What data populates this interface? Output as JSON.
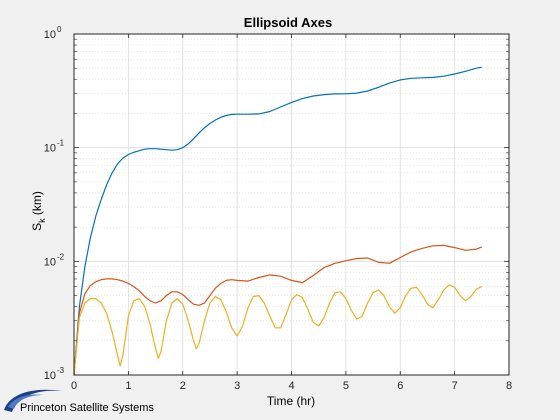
{
  "chart_data": {
    "type": "line",
    "title": "Ellipsoid Axes",
    "xlabel": "Time (hr)",
    "ylabel_main": "S",
    "ylabel_sub": "k",
    "ylabel_unit": " (km)",
    "xlim": [
      0,
      8
    ],
    "ylim": [
      0.001,
      1
    ],
    "yscale": "log",
    "grid": true,
    "minor_grid": true,
    "x_ticks": [
      "0",
      "1",
      "2",
      "3",
      "4",
      "5",
      "6",
      "7",
      "8"
    ],
    "y_ticks": [
      {
        "base": "10",
        "exp": "-3"
      },
      {
        "base": "10",
        "exp": "-2"
      },
      {
        "base": "10",
        "exp": "-1"
      },
      {
        "base": "10",
        "exp": "0"
      }
    ],
    "series": [
      {
        "color": "#0072bd",
        "x": [
          0,
          0.1,
          0.2,
          0.3,
          0.4,
          0.5,
          0.6,
          0.7,
          0.8,
          0.9,
          1.0,
          1.1,
          1.2,
          1.3,
          1.4,
          1.5,
          1.6,
          1.7,
          1.8,
          1.9,
          2.0,
          2.1,
          2.2,
          2.3,
          2.4,
          2.5,
          2.6,
          2.7,
          2.8,
          2.9,
          3.0,
          3.2,
          3.4,
          3.6,
          3.8,
          4.0,
          4.2,
          4.4,
          4.6,
          4.8,
          5.0,
          5.2,
          5.4,
          5.6,
          5.8,
          6.0,
          6.2,
          6.4,
          6.6,
          6.8,
          7.0,
          7.2,
          7.4,
          7.5
        ],
        "y": [
          0.001,
          0.004,
          0.009,
          0.016,
          0.025,
          0.035,
          0.047,
          0.06,
          0.072,
          0.081,
          0.087,
          0.091,
          0.094,
          0.097,
          0.098,
          0.098,
          0.097,
          0.096,
          0.095,
          0.096,
          0.1,
          0.108,
          0.12,
          0.135,
          0.15,
          0.163,
          0.175,
          0.185,
          0.192,
          0.196,
          0.197,
          0.197,
          0.198,
          0.208,
          0.228,
          0.25,
          0.27,
          0.285,
          0.293,
          0.297,
          0.298,
          0.302,
          0.315,
          0.34,
          0.37,
          0.395,
          0.408,
          0.412,
          0.415,
          0.425,
          0.445,
          0.47,
          0.5,
          0.51
        ]
      },
      {
        "color": "#d95319",
        "x": [
          0,
          0.1,
          0.2,
          0.3,
          0.4,
          0.5,
          0.6,
          0.7,
          0.8,
          0.9,
          1.0,
          1.1,
          1.2,
          1.3,
          1.4,
          1.5,
          1.6,
          1.7,
          1.8,
          1.9,
          2.0,
          2.1,
          2.2,
          2.3,
          2.4,
          2.5,
          2.6,
          2.7,
          2.8,
          2.9,
          3.0,
          3.2,
          3.4,
          3.6,
          3.8,
          4.0,
          4.2,
          4.4,
          4.6,
          4.8,
          5.0,
          5.2,
          5.4,
          5.6,
          5.8,
          6.0,
          6.2,
          6.4,
          6.6,
          6.8,
          7.0,
          7.2,
          7.4,
          7.5
        ],
        "y": [
          0.001,
          0.0035,
          0.0052,
          0.0061,
          0.0066,
          0.0069,
          0.007,
          0.007,
          0.0069,
          0.0067,
          0.0064,
          0.006,
          0.0055,
          0.0049,
          0.0045,
          0.0043,
          0.0045,
          0.005,
          0.0054,
          0.0054,
          0.0051,
          0.0046,
          0.0042,
          0.0041,
          0.0043,
          0.005,
          0.0058,
          0.0064,
          0.0068,
          0.0069,
          0.0068,
          0.0067,
          0.0072,
          0.0076,
          0.0074,
          0.0068,
          0.0065,
          0.0075,
          0.0088,
          0.0096,
          0.0101,
          0.0106,
          0.0107,
          0.0098,
          0.0096,
          0.0108,
          0.0121,
          0.013,
          0.0137,
          0.0138,
          0.0132,
          0.0125,
          0.0128,
          0.0134
        ]
      },
      {
        "color": "#edb120",
        "x": [
          0,
          0.1,
          0.2,
          0.3,
          0.4,
          0.5,
          0.6,
          0.7,
          0.8,
          0.85,
          0.9,
          1.0,
          1.1,
          1.2,
          1.3,
          1.4,
          1.5,
          1.55,
          1.6,
          1.7,
          1.8,
          1.9,
          2.0,
          2.1,
          2.2,
          2.25,
          2.3,
          2.4,
          2.5,
          2.6,
          2.7,
          2.8,
          2.9,
          3.0,
          3.1,
          3.2,
          3.3,
          3.4,
          3.5,
          3.6,
          3.7,
          3.8,
          3.9,
          4.0,
          4.1,
          4.2,
          4.3,
          4.4,
          4.5,
          4.6,
          4.7,
          4.8,
          4.9,
          5.0,
          5.1,
          5.2,
          5.3,
          5.4,
          5.5,
          5.6,
          5.7,
          5.8,
          5.9,
          6.0,
          6.1,
          6.2,
          6.3,
          6.4,
          6.5,
          6.6,
          6.7,
          6.8,
          6.9,
          7.0,
          7.1,
          7.2,
          7.3,
          7.4,
          7.5
        ],
        "y": [
          0.001,
          0.0032,
          0.0043,
          0.0047,
          0.0047,
          0.0043,
          0.0035,
          0.0024,
          0.0015,
          0.0012,
          0.0015,
          0.0033,
          0.0045,
          0.0047,
          0.004,
          0.0028,
          0.0017,
          0.0014,
          0.0016,
          0.003,
          0.0043,
          0.0047,
          0.0042,
          0.003,
          0.002,
          0.0017,
          0.0019,
          0.003,
          0.0043,
          0.0049,
          0.0046,
          0.0036,
          0.0026,
          0.0022,
          0.0027,
          0.0039,
          0.0049,
          0.005,
          0.0043,
          0.0033,
          0.0026,
          0.0026,
          0.0034,
          0.0046,
          0.0051,
          0.0048,
          0.0038,
          0.0029,
          0.0027,
          0.0032,
          0.0043,
          0.0053,
          0.0054,
          0.0047,
          0.0037,
          0.0031,
          0.0033,
          0.0043,
          0.0053,
          0.0056,
          0.005,
          0.004,
          0.0035,
          0.0039,
          0.005,
          0.0058,
          0.0059,
          0.0051,
          0.0042,
          0.0039,
          0.0046,
          0.0056,
          0.0062,
          0.0059,
          0.005,
          0.0045,
          0.0049,
          0.0057,
          0.006
        ]
      }
    ]
  },
  "footer": {
    "logo_text": "Princeton Satellite Systems",
    "logo_icon": "swoosh-logo-icon",
    "logo_color": "#1d3f8a"
  }
}
